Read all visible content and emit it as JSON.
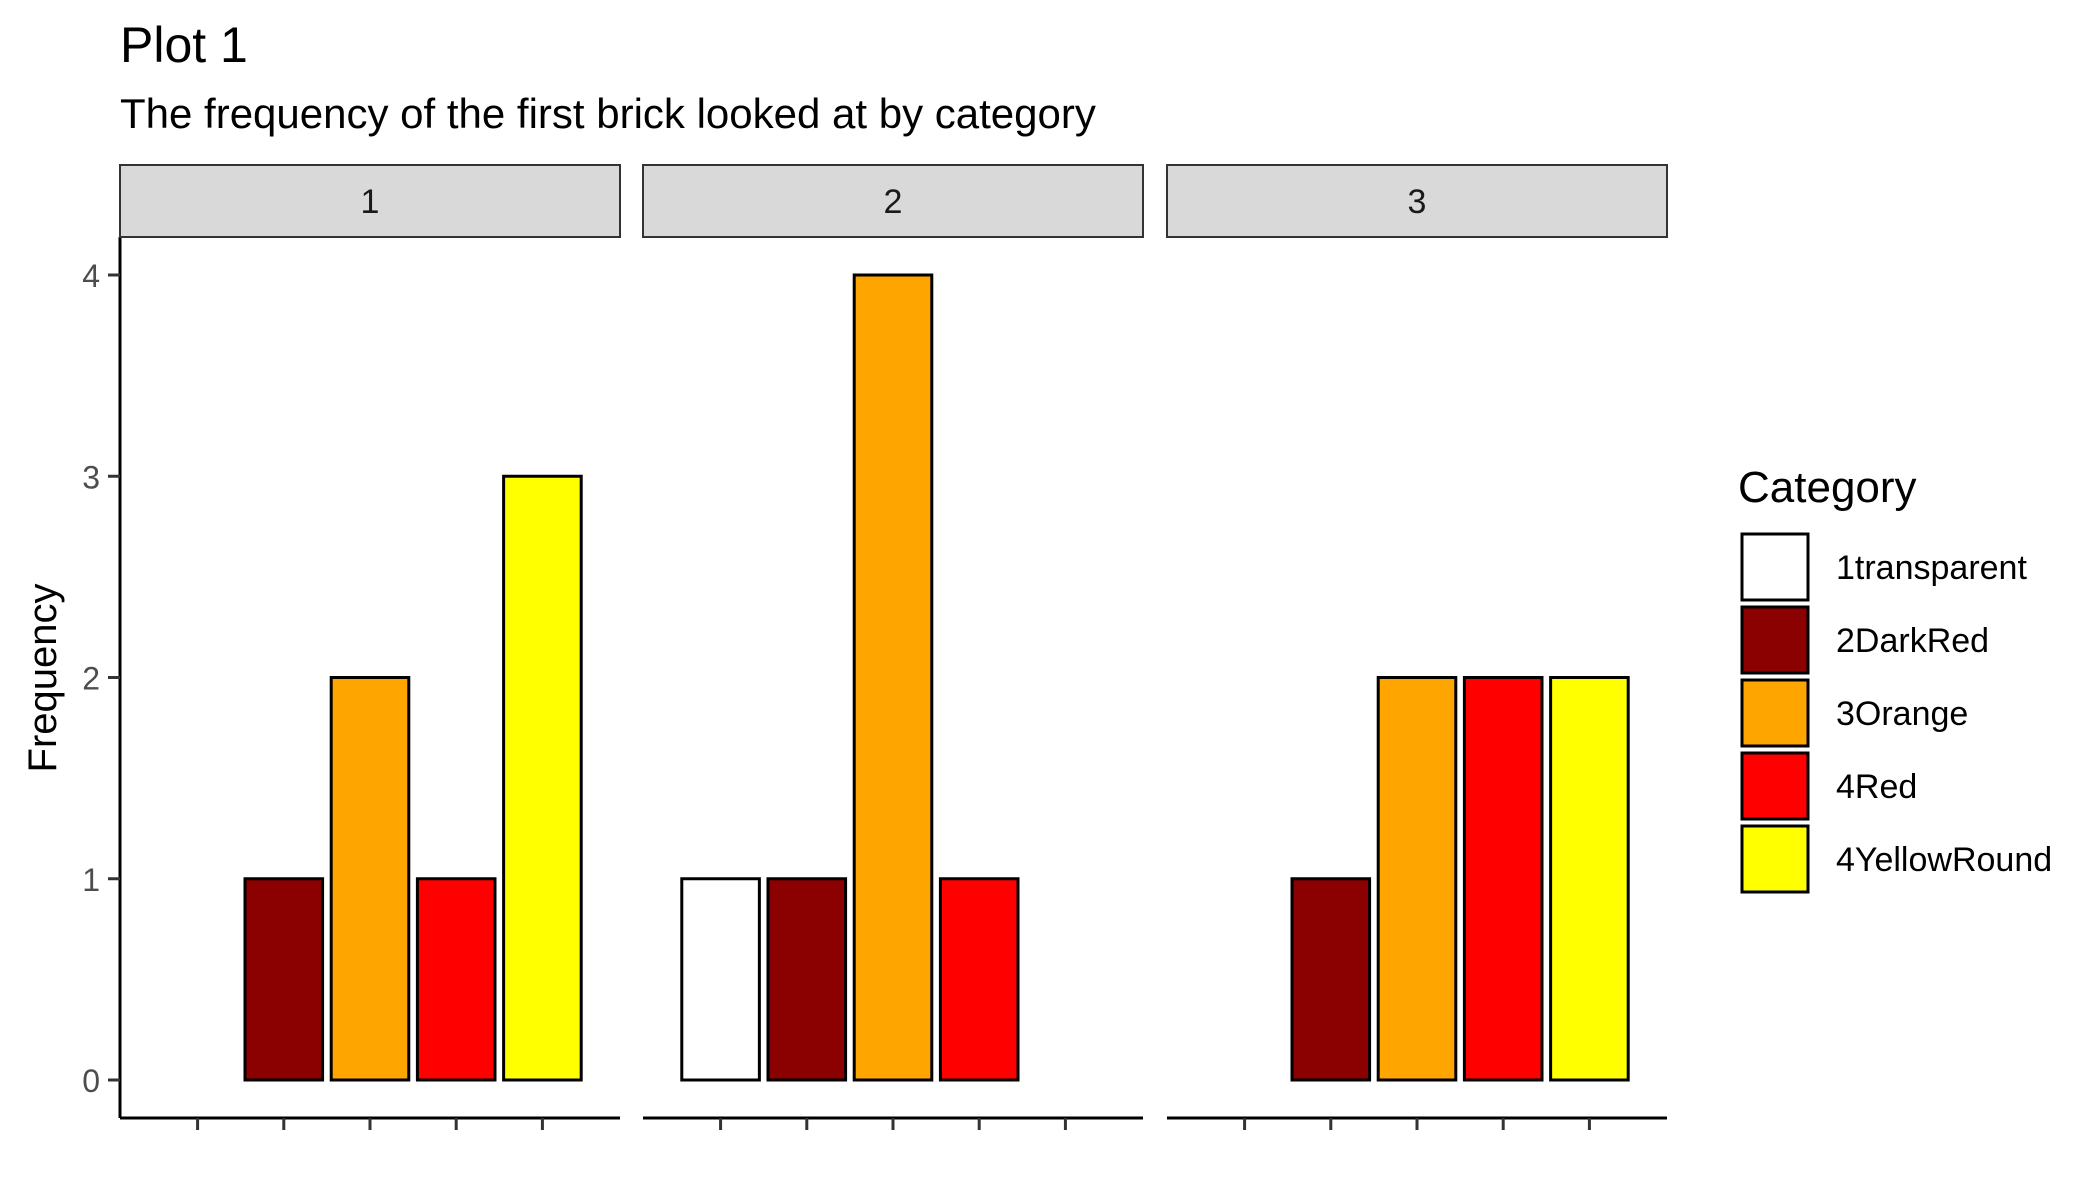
{
  "title": "Plot 1",
  "subtitle": "The frequency of the first brick looked at by category",
  "chart_data": {
    "type": "bar",
    "facet_variable": "panel",
    "panels": [
      "1",
      "2",
      "3"
    ],
    "categories": [
      "1transparent",
      "2DarkRed",
      "3Orange",
      "4Red",
      "4YellowRound"
    ],
    "ylabel": "Frequency",
    "xlabel": "",
    "ylim": [
      0,
      4
    ],
    "yticks": [
      "0",
      "1",
      "2",
      "3",
      "4"
    ],
    "grid": false,
    "legend": {
      "title": "Category",
      "placement": "right",
      "entries": [
        {
          "label": "1transparent",
          "color": "#FFFFFF"
        },
        {
          "label": "2DarkRed",
          "color": "#8B0000"
        },
        {
          "label": "3Orange",
          "color": "#FFA500"
        },
        {
          "label": "4Red",
          "color": "#FF0000"
        },
        {
          "label": "4YellowRound",
          "color": "#FFFF00"
        }
      ]
    },
    "facets": [
      {
        "panel": "1",
        "values": {
          "2DarkRed": 1,
          "3Orange": 2,
          "4Red": 1,
          "4YellowRound": 3
        }
      },
      {
        "panel": "2",
        "values": {
          "1transparent": 1,
          "2DarkRed": 1,
          "3Orange": 4,
          "4Red": 1
        }
      },
      {
        "panel": "3",
        "values": {
          "2DarkRed": 1,
          "3Orange": 2,
          "4Red": 2,
          "4YellowRound": 2
        }
      }
    ]
  }
}
